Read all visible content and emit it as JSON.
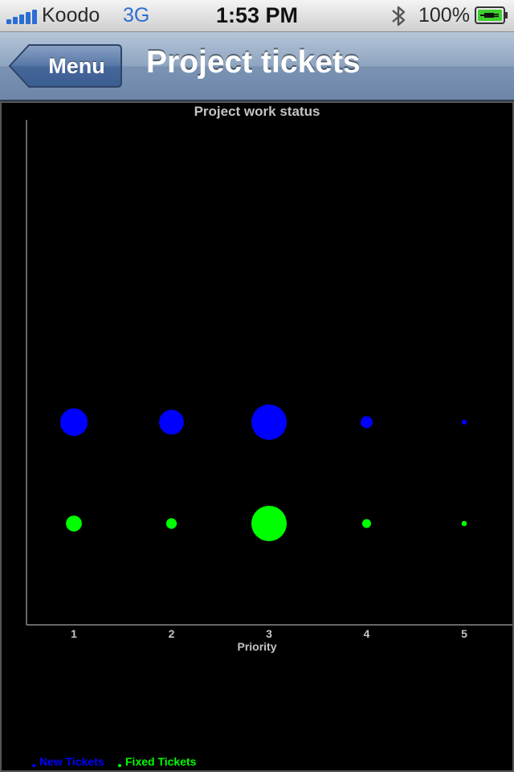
{
  "status_bar": {
    "carrier": "Koodo",
    "network": "3G",
    "time": "1:53 PM",
    "battery": "100%",
    "icons": [
      "signal-bars-icon",
      "bluetooth-icon",
      "battery-charging-icon"
    ]
  },
  "nav": {
    "back_label": "Menu",
    "title": "Project tickets"
  },
  "colors": {
    "new_tickets": "#0000ff",
    "fixed_tickets": "#00ff00",
    "axis": "#888888",
    "text": "#bbbbbb"
  },
  "chart_data": {
    "type": "scatter",
    "title": "Project work status",
    "xlabel": "Priority",
    "ylabel": "",
    "categories": [
      "1",
      "2",
      "3",
      "4",
      "5"
    ],
    "series": [
      {
        "name": "New Tickets",
        "color": "#0000ff",
        "relative_size": [
          0.78,
          0.7,
          1.0,
          0.34,
          0.14
        ]
      },
      {
        "name": "Fixed Tickets",
        "color": "#00ff00",
        "relative_size": [
          0.45,
          0.3,
          1.0,
          0.25,
          0.15
        ]
      }
    ],
    "legend_position": "bottom-left",
    "grid": false
  }
}
